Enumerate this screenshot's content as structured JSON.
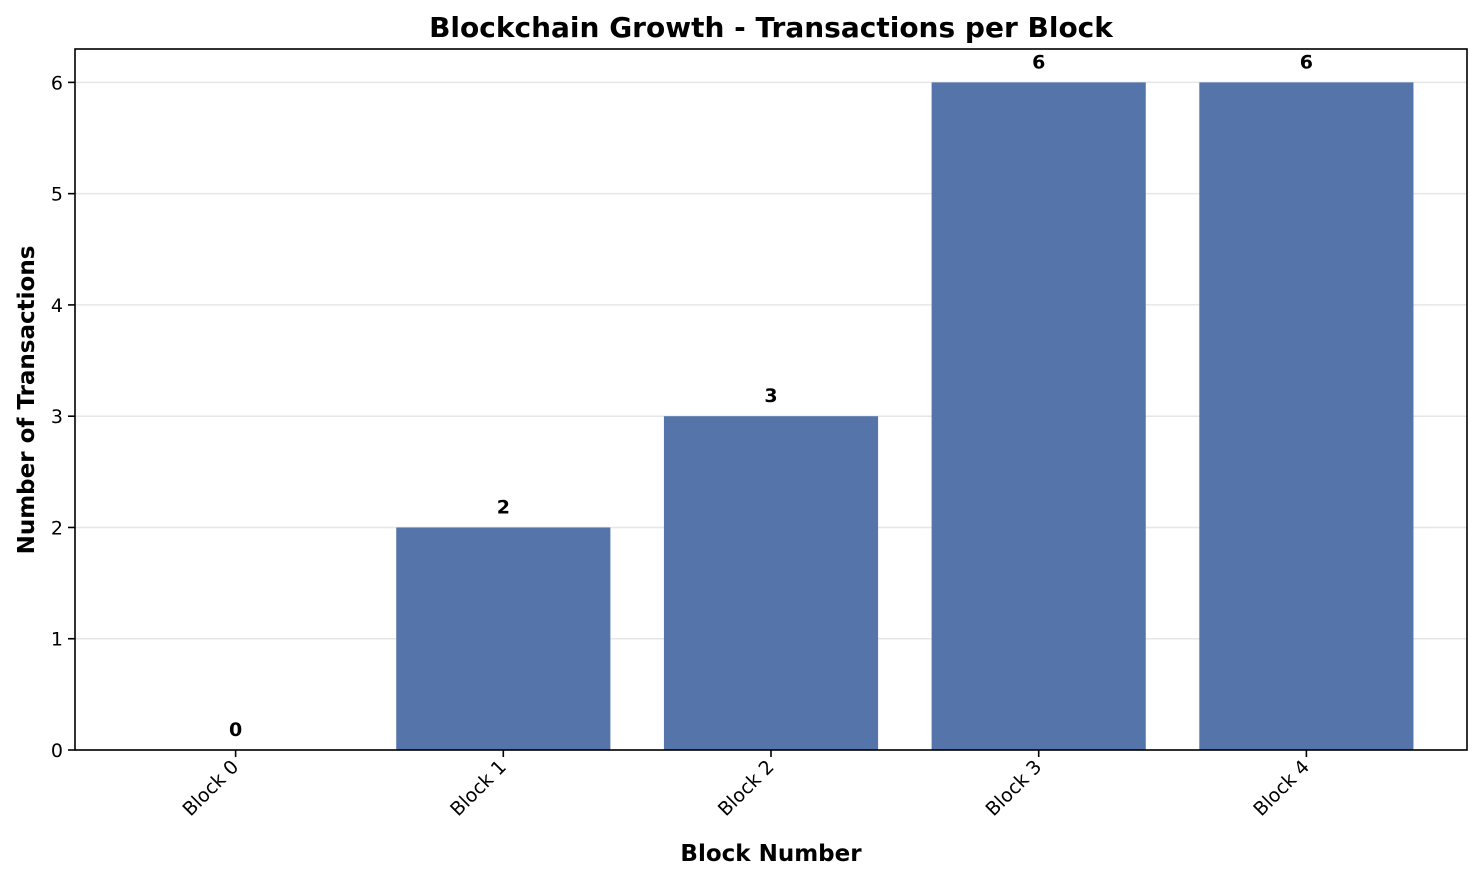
{
  "chart_data": {
    "type": "bar",
    "title": "Blockchain Growth - Transactions per Block",
    "xlabel": "Block Number",
    "ylabel": "Number of Transactions",
    "categories": [
      "Block 0",
      "Block 1",
      "Block 2",
      "Block 3",
      "Block 4"
    ],
    "values": [
      0,
      2,
      3,
      6,
      6
    ],
    "data_labels": [
      "0",
      "2",
      "3",
      "6",
      "6"
    ],
    "ylim": [
      0,
      6.3
    ],
    "yticks": [
      0,
      1,
      2,
      3,
      4,
      5,
      6
    ],
    "ytick_labels": [
      "0",
      "1",
      "2",
      "3",
      "4",
      "5",
      "6"
    ],
    "grid": "y",
    "bar_color": "#5574aa",
    "grid_color": "#e6e6e6",
    "axis_color": "#000000",
    "xtick_rotation_deg": 45
  }
}
